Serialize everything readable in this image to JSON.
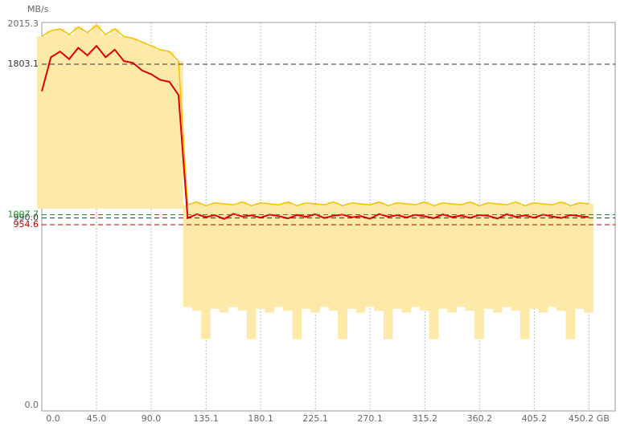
{
  "chart_data": {
    "type": "range-line",
    "y_label": "MB/s",
    "x": [
      0,
      7.5,
      15,
      22.5,
      30,
      37.5,
      45,
      52.5,
      60,
      67.5,
      75,
      82.5,
      90,
      97.5,
      105,
      112.5,
      120,
      127.5,
      135,
      142.5,
      150,
      157.5,
      165,
      172.5,
      180,
      187.5,
      195,
      202.5,
      210,
      217.5,
      225,
      232.5,
      240,
      247.5,
      255,
      262.5,
      270,
      277.5,
      285,
      292.5,
      300,
      307.5,
      315,
      322.5,
      330,
      337.5,
      345,
      352.5,
      360,
      367.5,
      375,
      382.5,
      390,
      397.5,
      405,
      412.5,
      420,
      427.5,
      435,
      442.5,
      450
    ],
    "series": [
      {
        "color": "#f5c000",
        "values": [
          1950,
          1980,
          1990,
          1960,
          2000,
          1970,
          2010,
          1960,
          1990,
          1950,
          1940,
          1920,
          1900,
          1880,
          1870,
          1820,
          1060,
          1075,
          1055,
          1070,
          1065,
          1060,
          1075,
          1055,
          1070,
          1065,
          1060,
          1075,
          1055,
          1070,
          1065,
          1060,
          1075,
          1055,
          1070,
          1065,
          1060,
          1075,
          1055,
          1070,
          1065,
          1060,
          1075,
          1055,
          1070,
          1065,
          1060,
          1075,
          1055,
          1070,
          1065,
          1060,
          1075,
          1055,
          1070,
          1065,
          1060,
          1075,
          1055,
          1070,
          1065
        ]
      },
      {
        "color": "#e00000",
        "values": [
          1660,
          1840,
          1870,
          1830,
          1890,
          1850,
          1900,
          1840,
          1880,
          1820,
          1810,
          1770,
          1750,
          1720,
          1710,
          1640,
          990,
          1010,
          995,
          1005,
          985,
          1012,
          998,
          1004,
          992,
          1008,
          1000,
          988,
          1006,
          996,
          1010,
          990,
          1002,
          1008,
          994,
          1000,
          986,
          1011,
          997,
          1005,
          993,
          1007,
          999,
          989,
          1009,
          995,
          1003,
          991,
          1006,
          1001,
          987,
          1010,
          996,
          1004,
          992,
          1008,
          998,
          990,
          1006,
          1000,
          995
        ]
      },
      {
        "color": "#fde9a8",
        "values": [
          1040,
          1040,
          1040,
          1040,
          1040,
          1040,
          1040,
          1040,
          1040,
          1040,
          1040,
          1040,
          1040,
          1040,
          1040,
          1040,
          520,
          500,
          350,
          510,
          490,
          520,
          500,
          350,
          510,
          490,
          520,
          500,
          350,
          510,
          490,
          520,
          500,
          350,
          510,
          490,
          520,
          500,
          350,
          510,
          490,
          520,
          500,
          350,
          510,
          490,
          520,
          500,
          350,
          510,
          490,
          520,
          500,
          350,
          510,
          490,
          520,
          500,
          350,
          510,
          490
        ]
      }
    ],
    "xlim": [
      0,
      471.8
    ],
    "ylim": [
      0,
      2015.3
    ],
    "xticks": [
      {
        "value": 0,
        "label": "0.0"
      },
      {
        "value": 45,
        "label": "45.0"
      },
      {
        "value": 90,
        "label": "90.0"
      },
      {
        "value": 135.1,
        "label": "135.1"
      },
      {
        "value": 180.1,
        "label": "180.1"
      },
      {
        "value": 225.1,
        "label": "225.1"
      },
      {
        "value": 270.1,
        "label": "270.1"
      },
      {
        "value": 315.2,
        "label": "315.2"
      },
      {
        "value": 360.2,
        "label": "360.2"
      },
      {
        "value": 405.2,
        "label": "405.2"
      },
      {
        "value": 450.2,
        "label": "450.2 GB"
      }
    ],
    "yticks": [
      {
        "value": 0,
        "label": "0.0"
      },
      {
        "value": 954.6,
        "label": "954.6",
        "color": "#c00000"
      },
      {
        "value": 990,
        "label": "990.0",
        "color": "#333333"
      },
      {
        "value": 1007.7,
        "label": "1007.7",
        "color": "#1a9a1a"
      },
      {
        "value": 1803.1,
        "label": "1803.1",
        "color": "#333333"
      },
      {
        "value": 2015.3,
        "label": "2015.3"
      }
    ],
    "grid": true
  }
}
